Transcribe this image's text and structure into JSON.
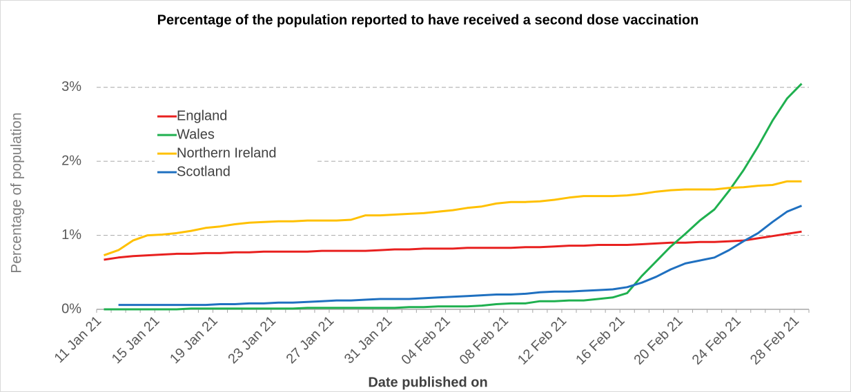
{
  "chart_data": {
    "type": "line",
    "title": "Percentage of the population reported to have received a second dose vaccination",
    "x_label": "Date published on",
    "y_label": "Percentage of population",
    "categories": [
      "11 Jan 21",
      null,
      null,
      null,
      "15 Jan 21",
      null,
      null,
      null,
      "19 Jan 21",
      null,
      null,
      null,
      "23 Jan 21",
      null,
      null,
      null,
      "27 Jan 21",
      null,
      null,
      null,
      "31 Jan 21",
      null,
      null,
      null,
      "04 Feb 21",
      null,
      null,
      null,
      "08 Feb 21",
      null,
      null,
      null,
      "12 Feb 21",
      null,
      null,
      null,
      "16 Feb 21",
      null,
      null,
      null,
      "20 Feb 21",
      null,
      null,
      null,
      "24 Feb 21",
      null,
      null,
      null,
      "28 Feb 21"
    ],
    "series": [
      {
        "name": "England",
        "color": "#e8201f",
        "values": [
          0.67,
          0.7,
          0.72,
          0.73,
          0.74,
          0.75,
          0.75,
          0.76,
          0.76,
          0.77,
          0.77,
          0.78,
          0.78,
          0.78,
          0.78,
          0.79,
          0.79,
          0.79,
          0.79,
          0.8,
          0.81,
          0.81,
          0.82,
          0.82,
          0.82,
          0.83,
          0.83,
          0.83,
          0.83,
          0.84,
          0.84,
          0.85,
          0.86,
          0.86,
          0.87,
          0.87,
          0.87,
          0.88,
          0.89,
          0.9,
          0.9,
          0.91,
          0.91,
          0.92,
          0.93,
          0.96,
          0.99,
          1.02,
          1.05
        ]
      },
      {
        "name": "Wales",
        "color": "#1fb04f",
        "values": [
          0.0,
          0.0,
          0.0,
          0.0,
          0.0,
          0.0,
          0.01,
          0.01,
          0.01,
          0.01,
          0.01,
          0.01,
          0.01,
          0.01,
          0.02,
          0.02,
          0.02,
          0.02,
          0.02,
          0.02,
          0.02,
          0.03,
          0.03,
          0.04,
          0.04,
          0.04,
          0.05,
          0.07,
          0.08,
          0.08,
          0.11,
          0.11,
          0.12,
          0.12,
          0.14,
          0.16,
          0.22,
          0.45,
          0.65,
          0.85,
          1.02,
          1.2,
          1.35,
          1.6,
          1.88,
          2.2,
          2.55,
          2.85,
          3.05
        ]
      },
      {
        "name": "Northern Ireland",
        "color": "#ffc000",
        "values": [
          0.73,
          0.8,
          0.93,
          1.0,
          1.01,
          1.03,
          1.06,
          1.1,
          1.12,
          1.15,
          1.17,
          1.18,
          1.19,
          1.19,
          1.2,
          1.2,
          1.2,
          1.21,
          1.27,
          1.27,
          1.28,
          1.29,
          1.3,
          1.32,
          1.34,
          1.37,
          1.39,
          1.43,
          1.45,
          1.45,
          1.46,
          1.48,
          1.51,
          1.53,
          1.53,
          1.53,
          1.54,
          1.56,
          1.59,
          1.61,
          1.62,
          1.62,
          1.62,
          1.64,
          1.65,
          1.67,
          1.68,
          1.73,
          1.73
        ]
      },
      {
        "name": "Scotland",
        "color": "#1f70c0",
        "values": [
          null,
          0.06,
          0.06,
          0.06,
          0.06,
          0.06,
          0.06,
          0.06,
          0.07,
          0.07,
          0.08,
          0.08,
          0.09,
          0.09,
          0.1,
          0.11,
          0.12,
          0.12,
          0.13,
          0.14,
          0.14,
          0.14,
          0.15,
          0.16,
          0.17,
          0.18,
          0.19,
          0.2,
          0.2,
          0.21,
          0.23,
          0.24,
          0.24,
          0.25,
          0.26,
          0.27,
          0.3,
          0.36,
          0.44,
          0.54,
          0.62,
          0.66,
          0.7,
          0.8,
          0.92,
          1.03,
          1.18,
          1.32,
          1.4
        ]
      }
    ],
    "ylim": [
      0,
      3.1
    ],
    "yticks": [
      {
        "value": 0,
        "label": "0%"
      },
      {
        "value": 1,
        "label": "1%"
      },
      {
        "value": 2,
        "label": "2%"
      },
      {
        "value": 3,
        "label": "3%"
      }
    ],
    "grid": true,
    "legend": "upper left"
  }
}
